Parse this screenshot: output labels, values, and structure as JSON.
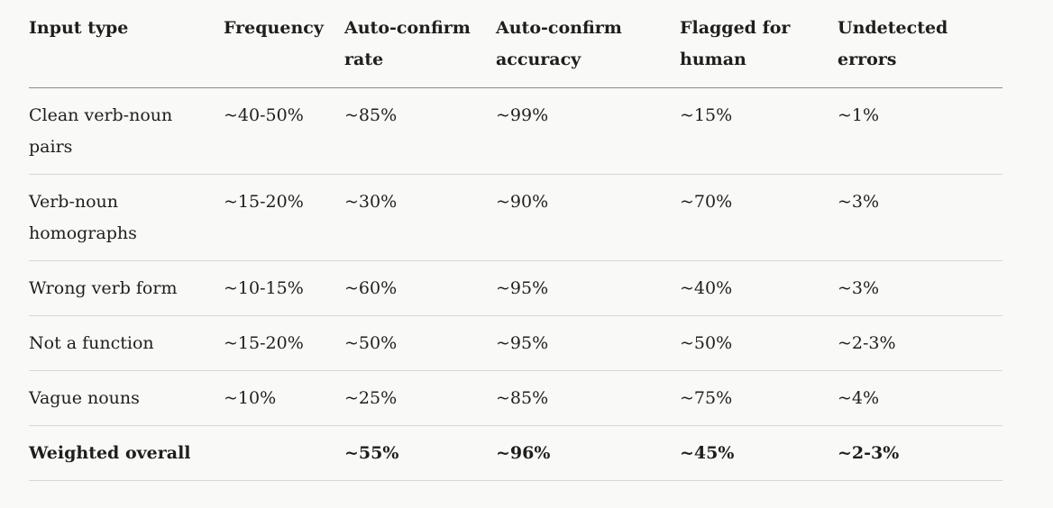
{
  "table": {
    "headers": [
      "Input type",
      "Frequency",
      "Auto-confirm rate",
      "Auto-confirm accuracy",
      "Flagged for human",
      "Undetected errors"
    ],
    "rows": [
      [
        "Clean verb-noun pairs",
        "~40-50%",
        "~85%",
        "~99%",
        "~15%",
        "~1%"
      ],
      [
        "Verb-noun homographs",
        "~15-20%",
        "~30%",
        "~90%",
        "~70%",
        "~3%"
      ],
      [
        "Wrong verb form",
        "~10-15%",
        "~60%",
        "~95%",
        "~40%",
        "~3%"
      ],
      [
        "Not a function",
        "~15-20%",
        "~50%",
        "~95%",
        "~50%",
        "~2-3%"
      ],
      [
        "Vague nouns",
        "~10%",
        "~25%",
        "~85%",
        "~75%",
        "~4%"
      ]
    ],
    "total": [
      "Weighted overall",
      "",
      "~55%",
      "~96%",
      "~45%",
      "~2-3%"
    ]
  }
}
